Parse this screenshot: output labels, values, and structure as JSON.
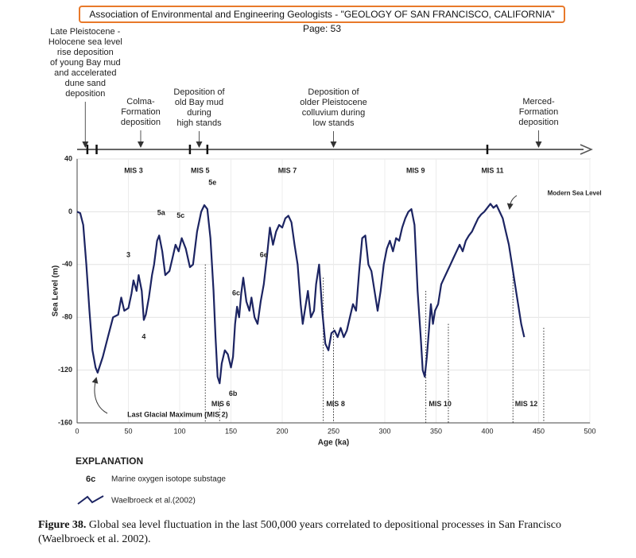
{
  "header": "Association of Environmental and Engineering Geologists - \"GEOLOGY OF SAN FRANCISCO, CALIFORNIA\" Page: 53",
  "timeline": {
    "processes": [
      {
        "lines": [
          "Late Pleistocene -",
          "Holocene sea level",
          "rise deposition",
          "of young Bay mud",
          "and accelerated",
          "dune sand",
          "deposition"
        ]
      },
      {
        "lines": [
          "Colma-",
          "Formation",
          "deposition"
        ]
      },
      {
        "lines": [
          "Deposition of",
          "old Bay mud",
          "during",
          "high stands"
        ]
      },
      {
        "lines": [
          "Deposition of",
          "older Pleistocene",
          "colluvium during",
          "low stands"
        ]
      },
      {
        "lines": [
          "Merced-",
          "Formation",
          "deposition"
        ]
      }
    ]
  },
  "chart_data": {
    "type": "line",
    "xlabel": "Age (ka)",
    "ylabel": "Sea Level (m)",
    "xlim": [
      0,
      500
    ],
    "ylim": [
      -160,
      40
    ],
    "xticks": [
      0,
      50,
      100,
      150,
      200,
      250,
      300,
      350,
      400,
      450,
      500
    ],
    "yticks": [
      40,
      0,
      -40,
      -80,
      -120,
      -160
    ],
    "grid": true,
    "series": [
      {
        "name": "Waelbroeck et al.(2002)",
        "color": "#1c2462",
        "x": [
          0,
          3,
          6,
          9,
          12,
          15,
          18,
          20,
          25,
          30,
          35,
          40,
          43,
          46,
          50,
          53,
          55,
          58,
          60,
          63,
          65,
          67,
          70,
          73,
          75,
          78,
          80,
          83,
          86,
          90,
          93,
          96,
          99,
          102,
          106,
          110,
          113,
          117,
          121,
          124,
          127,
          130,
          133,
          135,
          137,
          139,
          141,
          144,
          147,
          150,
          152,
          154,
          156,
          158,
          160,
          162,
          165,
          168,
          170,
          173,
          176,
          179,
          182,
          185,
          188,
          191,
          194,
          197,
          200,
          203,
          206,
          209,
          212,
          215,
          218,
          220,
          222,
          225,
          228,
          231,
          233,
          236,
          239,
          242,
          245,
          248,
          251,
          254,
          257,
          260,
          263,
          266,
          269,
          272,
          275,
          278,
          281,
          284,
          287,
          290,
          293,
          296,
          299,
          302,
          305,
          308,
          311,
          314,
          317,
          320,
          323,
          326,
          329,
          332,
          335,
          337,
          339,
          341,
          343,
          345,
          347,
          349,
          352,
          355,
          358,
          361,
          364,
          367,
          370,
          373,
          376,
          379,
          382,
          385,
          388,
          391,
          394,
          397,
          400,
          403,
          406,
          409,
          412,
          415,
          418,
          421,
          424,
          427,
          430,
          433,
          436
        ],
        "values": [
          0,
          -1,
          -10,
          -40,
          -75,
          -105,
          -118,
          -122,
          -110,
          -95,
          -80,
          -78,
          -65,
          -75,
          -73,
          -62,
          -52,
          -60,
          -48,
          -60,
          -82,
          -78,
          -65,
          -48,
          -40,
          -22,
          -18,
          -30,
          -48,
          -45,
          -35,
          -25,
          -30,
          -20,
          -28,
          -42,
          -40,
          -15,
          0,
          5,
          2,
          -20,
          -60,
          -95,
          -125,
          -130,
          -115,
          -105,
          -108,
          -118,
          -110,
          -85,
          -72,
          -80,
          -62,
          -50,
          -68,
          -75,
          -65,
          -80,
          -85,
          -68,
          -55,
          -35,
          -12,
          -25,
          -15,
          -10,
          -12,
          -5,
          -3,
          -8,
          -25,
          -40,
          -70,
          -85,
          -75,
          -60,
          -80,
          -75,
          -55,
          -40,
          -75,
          -100,
          -105,
          -92,
          -90,
          -95,
          -88,
          -95,
          -90,
          -80,
          -70,
          -75,
          -45,
          -20,
          -18,
          -40,
          -45,
          -60,
          -75,
          -60,
          -40,
          -28,
          -22,
          -30,
          -20,
          -22,
          -12,
          -5,
          0,
          2,
          -10,
          -60,
          -95,
          -120,
          -125,
          -110,
          -90,
          -70,
          -85,
          -75,
          -70,
          -55,
          -50,
          -45,
          -40,
          -35,
          -30,
          -25,
          -30,
          -22,
          -18,
          -15,
          -10,
          -5,
          -2,
          0,
          3,
          6,
          3,
          5,
          0,
          -5,
          -15,
          -25,
          -40,
          -55,
          -70,
          -85,
          -95
        ]
      }
    ],
    "annotations": [
      "MIS 3",
      "MIS 5",
      "5e",
      "MIS 7",
      "MIS 9",
      "MIS 11",
      "5a",
      "5c",
      "3",
      "4",
      "6e",
      "6c",
      "6b",
      "MIS 6",
      "MIS 8",
      "MIS 10",
      "MIS 12",
      "Modern Sea Level",
      "Last Glacial Maximum (MIS 2)"
    ]
  },
  "explanation": {
    "title": "EXPLANATION",
    "symbol": "6c",
    "symbol_text": "Marine oxygen isotope substage"
  },
  "caption": {
    "label": "Figure 38.",
    "text": "Global sea level fluctuation in the last 500,000 years correlated to depositional processes in San Francisco (Waelbroeck et al. 2002)."
  }
}
